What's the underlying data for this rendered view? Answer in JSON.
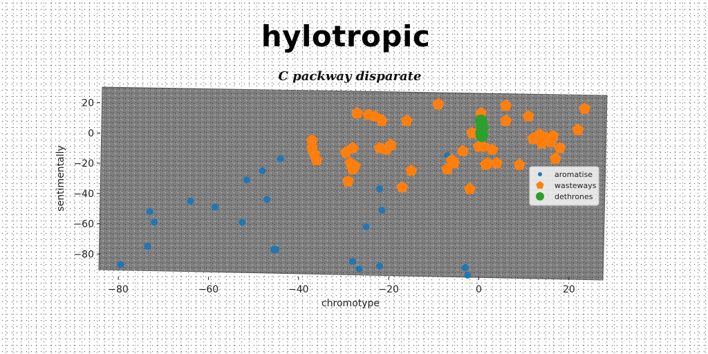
{
  "chart_data": {
    "type": "scatter",
    "title": "hylotropic",
    "subtitle": "C packway disparate",
    "xlabel": "chromotype",
    "ylabel": "sentimentally",
    "xlim": [
      -84,
      28
    ],
    "ylim": [
      -94,
      28
    ],
    "x_ticks": [
      -80,
      -60,
      -40,
      -20,
      0,
      20
    ],
    "y_ticks": [
      20,
      0,
      -20,
      -40,
      -60,
      -80
    ],
    "legend_position": "center-right",
    "series": [
      {
        "name": "aromatise",
        "color": "#1f77b4",
        "marker": "circle",
        "x": [
          -79.5,
          -73.5,
          -73,
          -72,
          -64,
          -58.5,
          -52.5,
          -51.5,
          -48,
          -47,
          -45.5,
          -45,
          -44,
          -28,
          -26.5,
          -25,
          -22,
          -22,
          -21.5,
          -7,
          -3,
          -2.5
        ],
        "y": [
          -87,
          -75,
          -52,
          -59,
          -45,
          -49,
          -59,
          -31,
          -25,
          -44,
          -77,
          -77,
          -17,
          -85,
          -90,
          -62,
          -88,
          -37,
          -51,
          -15,
          -89,
          -94
        ]
      },
      {
        "name": "wasteways",
        "color": "#ff7f0e",
        "marker": "pentagon",
        "x": [
          -37,
          -37,
          -36.5,
          -36,
          -29.5,
          -29,
          -28.5,
          -28,
          -28,
          -27.5,
          -27,
          -24.5,
          -23,
          -22,
          -21.5,
          -20.5,
          -19.5,
          -17,
          -16,
          -15,
          -9,
          -7,
          -6,
          -5.5,
          -3.5,
          -2,
          -1.5,
          0,
          0.5,
          1,
          1.5,
          2,
          3,
          4,
          6,
          6,
          9,
          11,
          12,
          13.5,
          14,
          15,
          16,
          16.5,
          17,
          18,
          22,
          23.5
        ],
        "y": [
          -5,
          -10,
          -14,
          -18,
          -13,
          -32,
          -20,
          -24,
          -10,
          -22,
          13,
          12,
          11,
          -10,
          8,
          -11,
          -8,
          -36,
          8,
          -25,
          19,
          -24,
          -18,
          -20,
          -12,
          -37,
          0,
          -9,
          13,
          -9,
          -21,
          -20,
          -11,
          -20,
          8,
          18,
          -21,
          11,
          -4,
          -1,
          -7,
          -3,
          -6,
          -2,
          -17,
          -10,
          2,
          16
        ]
      },
      {
        "name": "dethrones",
        "color": "#2ca02c",
        "marker": "circle",
        "x": [
          0.5,
          0.8,
          0.6,
          0.7
        ],
        "y": [
          8,
          4,
          0,
          -2
        ]
      }
    ]
  }
}
